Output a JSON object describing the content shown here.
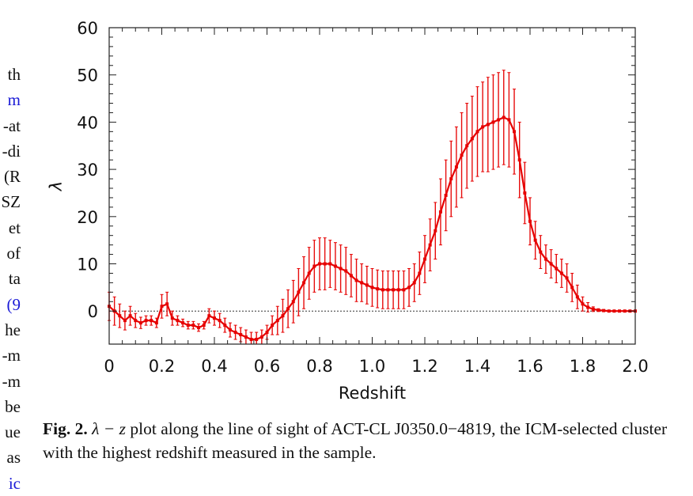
{
  "left_column": [
    {
      "text": "th",
      "link": false
    },
    {
      "text": "m",
      "link": true
    },
    {
      "text": "at-",
      "link": false
    },
    {
      "text": "di-",
      "link": false
    },
    {
      "text": "R)",
      "link": false
    },
    {
      "text": "SZ",
      "link": false
    },
    {
      "text": "et",
      "link": false
    },
    {
      "text": "of",
      "link": false
    },
    {
      "text": "ta",
      "link": false
    },
    {
      "text": "9)",
      "link": true
    },
    {
      "text": "he",
      "link": false
    },
    {
      "text": "m-",
      "link": false
    },
    {
      "text": "m-",
      "link": false
    },
    {
      "text": "be",
      "link": false
    },
    {
      "text": "ue",
      "link": false
    },
    {
      "text": "as",
      "link": false
    },
    {
      "text": "ic",
      "link": true
    }
  ],
  "caption": {
    "label": "Fig. 2.",
    "math": "λ − z",
    "text": " plot along the line of sight of ACT-CL J0350.0−4819, the ICM-selected cluster with the highest redshift measured in the sample."
  },
  "chart_data": {
    "type": "line",
    "title": "",
    "xlabel": "Redshift",
    "ylabel": "λ",
    "xlim": [
      0,
      2.0
    ],
    "ylim": [
      -7,
      60
    ],
    "xticks": [
      "0",
      "0.2",
      "0.4",
      "0.6",
      "0.8",
      "1.0",
      "1.2",
      "1.4",
      "1.6",
      "1.8",
      "2.0"
    ],
    "yticks": [
      "0",
      "10",
      "20",
      "30",
      "40",
      "50",
      "60"
    ],
    "zero_line": true,
    "grid": false,
    "legend": "none",
    "series_color": "#e60000",
    "series": [
      {
        "x": [
          0.0,
          0.02,
          0.04,
          0.06,
          0.08,
          0.1,
          0.12,
          0.14,
          0.16,
          0.18,
          0.2,
          0.22,
          0.24,
          0.26,
          0.28,
          0.3,
          0.32,
          0.34,
          0.36,
          0.38,
          0.4,
          0.42,
          0.44,
          0.46,
          0.48,
          0.5,
          0.52,
          0.54,
          0.56,
          0.58,
          0.6,
          0.62,
          0.64,
          0.66,
          0.68,
          0.7,
          0.72,
          0.74,
          0.76,
          0.78,
          0.8,
          0.82,
          0.84,
          0.86,
          0.88,
          0.9,
          0.92,
          0.94,
          0.96,
          0.98,
          1.0,
          1.02,
          1.04,
          1.06,
          1.08,
          1.1,
          1.12,
          1.14,
          1.16,
          1.18,
          1.2,
          1.22,
          1.24,
          1.26,
          1.28,
          1.3,
          1.32,
          1.34,
          1.36,
          1.38,
          1.4,
          1.42,
          1.44,
          1.46,
          1.48,
          1.5,
          1.52,
          1.54,
          1.56,
          1.58,
          1.6,
          1.62,
          1.64,
          1.66,
          1.68,
          1.7,
          1.72,
          1.74,
          1.76,
          1.78,
          1.8,
          1.82,
          1.84,
          1.86,
          1.88,
          1.9,
          1.92,
          1.94,
          1.96,
          1.98,
          2.0
        ],
        "y": [
          1,
          0,
          -1,
          -2,
          -1,
          -2,
          -2.5,
          -2,
          -2,
          -2.5,
          1,
          1.5,
          -1.5,
          -2,
          -2.5,
          -3,
          -3,
          -3.5,
          -3,
          -1,
          -1.5,
          -2,
          -3,
          -4,
          -4.5,
          -5,
          -5.5,
          -6,
          -6,
          -5.5,
          -4.5,
          -3,
          -2,
          -1,
          0.5,
          2,
          4,
          6,
          8,
          9.5,
          10,
          10,
          10,
          9.5,
          9,
          8.5,
          7.5,
          6.5,
          6,
          5.5,
          5,
          4.7,
          4.5,
          4.5,
          4.5,
          4.5,
          4.5,
          5,
          6,
          8,
          11,
          14,
          17,
          21,
          24.5,
          28,
          30.5,
          33,
          35,
          36.5,
          38,
          39,
          39.5,
          40,
          40.5,
          41,
          40.5,
          38,
          32,
          25,
          19,
          15,
          12.5,
          11,
          10,
          9,
          8,
          7,
          5,
          3,
          1.5,
          0.8,
          0.4,
          0.2,
          0.1,
          0,
          0,
          0,
          0,
          0,
          0
        ],
        "err": [
          3,
          3,
          2.5,
          2,
          2,
          1.5,
          1.2,
          1,
          1,
          1,
          2.5,
          2.5,
          1.5,
          1,
          0.8,
          0.8,
          0.8,
          0.8,
          0.8,
          1.5,
          1.5,
          1.5,
          1.5,
          1.5,
          1.5,
          1.5,
          1.5,
          1.5,
          1.5,
          1.5,
          1.5,
          2,
          3,
          3.5,
          4,
          4.5,
          5,
          5.5,
          5.5,
          5.5,
          5.5,
          5.5,
          5,
          5,
          5,
          5,
          4.5,
          4.5,
          4,
          4,
          4,
          4,
          4,
          4,
          4,
          4,
          4,
          4,
          4,
          4.5,
          5,
          5.5,
          6,
          7,
          7.5,
          8,
          8.5,
          9,
          9,
          9,
          9.5,
          9.5,
          10,
          10,
          10,
          10,
          10,
          9,
          8,
          6.5,
          5,
          4,
          3.5,
          3,
          3,
          3,
          3,
          3,
          3,
          2.5,
          1.5,
          1,
          0.5,
          0.3,
          0.2,
          0.1,
          0.1,
          0.1,
          0.1,
          0.1,
          0.1
        ]
      }
    ]
  }
}
